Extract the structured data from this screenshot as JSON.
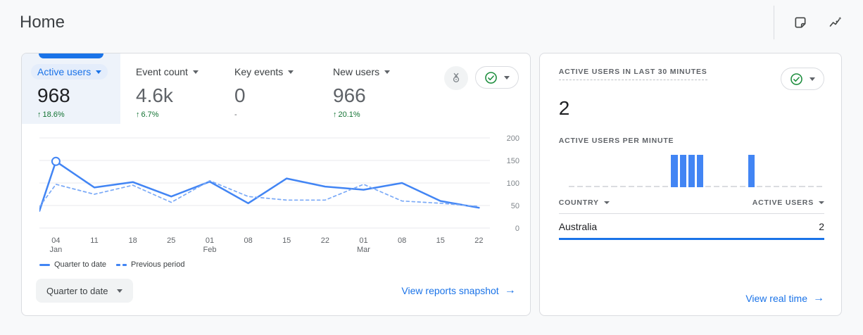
{
  "header": {
    "title": "Home"
  },
  "overview_card": {
    "metrics": [
      {
        "label": "Active users",
        "value": "968",
        "delta_arrow": "↑",
        "delta": "18.6%",
        "selected": true
      },
      {
        "label": "Event count",
        "value": "4.6k",
        "delta_arrow": "↑",
        "delta": "6.7%",
        "selected": false
      },
      {
        "label": "Key events",
        "value": "0",
        "delta_arrow": "",
        "delta": "-",
        "selected": false
      },
      {
        "label": "New users",
        "value": "966",
        "delta_arrow": "↑",
        "delta": "20.1%",
        "selected": false
      }
    ],
    "legend": [
      {
        "label": "Quarter to date",
        "style": "solid"
      },
      {
        "label": "Previous period",
        "style": "dashed"
      }
    ],
    "date_range_label": "Quarter to date",
    "snapshot_link": "View reports snapshot",
    "link_arrow": "→"
  },
  "realtime_card": {
    "title": "ACTIVE USERS IN LAST 30 MINUTES",
    "active_users": "2",
    "per_minute_label": "ACTIVE USERS PER MINUTE",
    "table": {
      "col_country": "COUNTRY",
      "col_active_users": "ACTIVE USERS",
      "rows": [
        {
          "country": "Australia",
          "value": "2",
          "bar_pct": 100
        }
      ]
    },
    "realtime_link": "View real time",
    "link_arrow": "→"
  },
  "chart_data": [
    {
      "type": "line",
      "title": "Active users trend (quarter to date vs previous period)",
      "x_days": [
        0,
        3,
        10,
        17,
        24,
        31,
        38,
        45,
        52,
        59,
        66,
        73,
        80
      ],
      "x_tick_labels": [
        {
          "day": 3,
          "label": "04",
          "sub": "Jan"
        },
        {
          "day": 10,
          "label": "11"
        },
        {
          "day": 17,
          "label": "18"
        },
        {
          "day": 24,
          "label": "25"
        },
        {
          "day": 31,
          "label": "01",
          "sub": "Feb"
        },
        {
          "day": 38,
          "label": "08"
        },
        {
          "day": 45,
          "label": "15"
        },
        {
          "day": 52,
          "label": "22"
        },
        {
          "day": 59,
          "label": "01",
          "sub": "Mar"
        },
        {
          "day": 66,
          "label": "08"
        },
        {
          "day": 73,
          "label": "15"
        },
        {
          "day": 80,
          "label": "22"
        }
      ],
      "ylim": [
        0,
        200
      ],
      "yticks": [
        0,
        50,
        100,
        150,
        200
      ],
      "grid": true,
      "legend_position": "bottom-left",
      "series": [
        {
          "name": "Quarter to date",
          "style": "solid",
          "color": "#4285f4",
          "values": [
            38,
            148,
            90,
            102,
            70,
            103,
            55,
            110,
            92,
            85,
            100,
            60,
            45
          ]
        },
        {
          "name": "Previous period",
          "style": "dashed",
          "color": "#7baaf7",
          "values": [
            47,
            97,
            75,
            95,
            57,
            105,
            70,
            62,
            62,
            97,
            60,
            55,
            48
          ]
        }
      ],
      "marker": {
        "series": 0,
        "index": 1
      }
    },
    {
      "type": "bar",
      "title": "Active users per minute (last 30 minutes)",
      "ylim": [
        0,
        1
      ],
      "bar_color": "#4285f4",
      "values": [
        0,
        0,
        0,
        0,
        0,
        0,
        0,
        0,
        0,
        0,
        0,
        0,
        1,
        1,
        1,
        1,
        0,
        0,
        0,
        0,
        0,
        1,
        0,
        0,
        0,
        0,
        0,
        0,
        0,
        0
      ]
    }
  ],
  "colors": {
    "accent_blue": "#1a73e8",
    "chart_blue": "#4285f4",
    "previous_period_blue": "#7baaf7",
    "positive_green": "#137333",
    "check_green": "#1e8e3e",
    "selected_tab_bg": "#eef3fa",
    "page_bg": "#f8f9fa"
  }
}
